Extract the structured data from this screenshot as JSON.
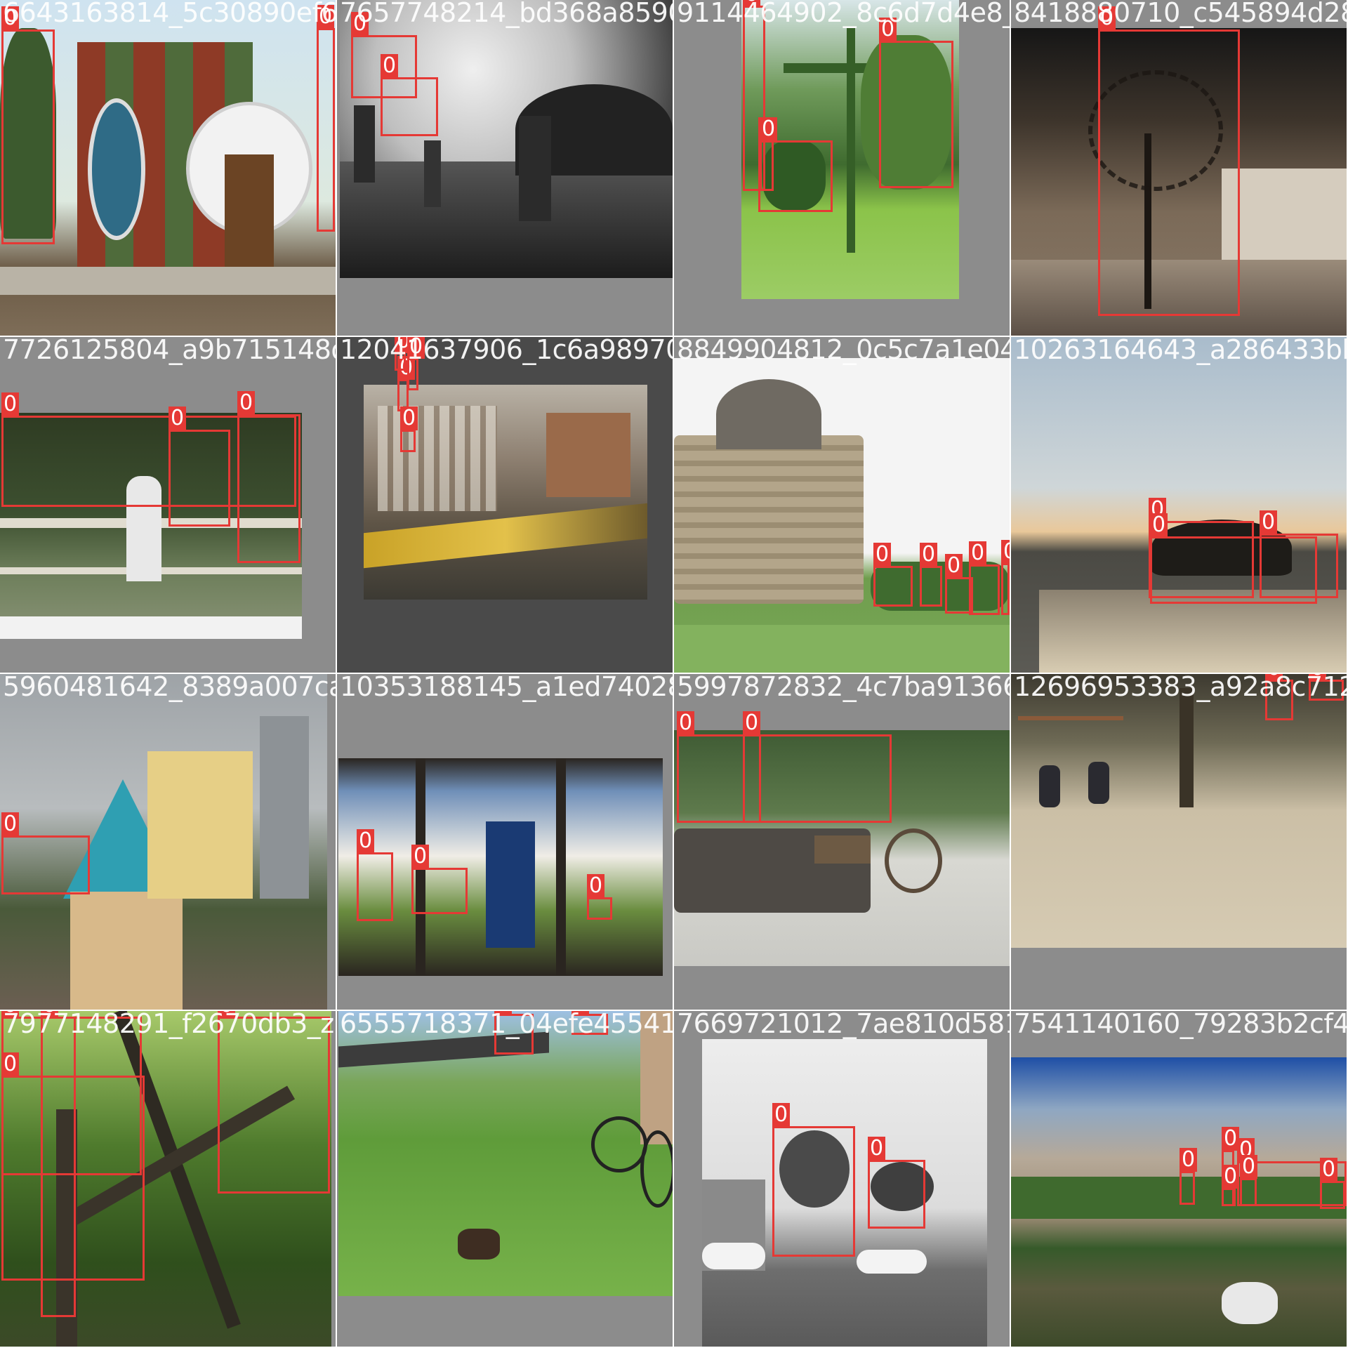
{
  "mosaic": {
    "tiles": [
      {
        "filename": "6643163814_5c30890ef6_0.jpg",
        "label": "0"
      },
      {
        "filename": "7657748214_bd368a8590_z.jpg",
        "label": "0"
      },
      {
        "filename": "9114464902_8c6d7d4e8_z.jpg",
        "label": "0"
      },
      {
        "filename": "8418880710_c545894d28_z.jpg",
        "label": "0"
      },
      {
        "filename": "7726125804_a9b715148d_z.jpg",
        "label": "0"
      },
      {
        "filename": "12041637906_1c6a989703_z.jpg",
        "label": "0"
      },
      {
        "filename": "8849904812_0c5c7a1e04_z.jpg",
        "label": "0"
      },
      {
        "filename": "10263164643_a286433bb8_z.jpg",
        "label": "0"
      },
      {
        "filename": "5960481642_8389a007ca_z.jpg",
        "label": "0"
      },
      {
        "filename": "10353188145_a1ed740281_z.jpg",
        "label": "0"
      },
      {
        "filename": "5997872832_4c7ba91366_z.jpg",
        "label": "0"
      },
      {
        "filename": "12696953383_a92a8c712b_z.jpg",
        "label": "0"
      },
      {
        "filename": "7977148291_f2670db3_z.jpg",
        "label": "0"
      },
      {
        "filename": "6555718371_04efe45541_z.jpg",
        "label": "0"
      },
      {
        "filename": "7669721012_7ae810d581_z.jpg",
        "label": "0"
      },
      {
        "filename": "7541140160_79283b2cf4_z.jpg",
        "label": "0"
      }
    ]
  },
  "colors": {
    "box": "#e53935",
    "cell_background": "#8c8c8c",
    "label_text": "#ffffff"
  }
}
